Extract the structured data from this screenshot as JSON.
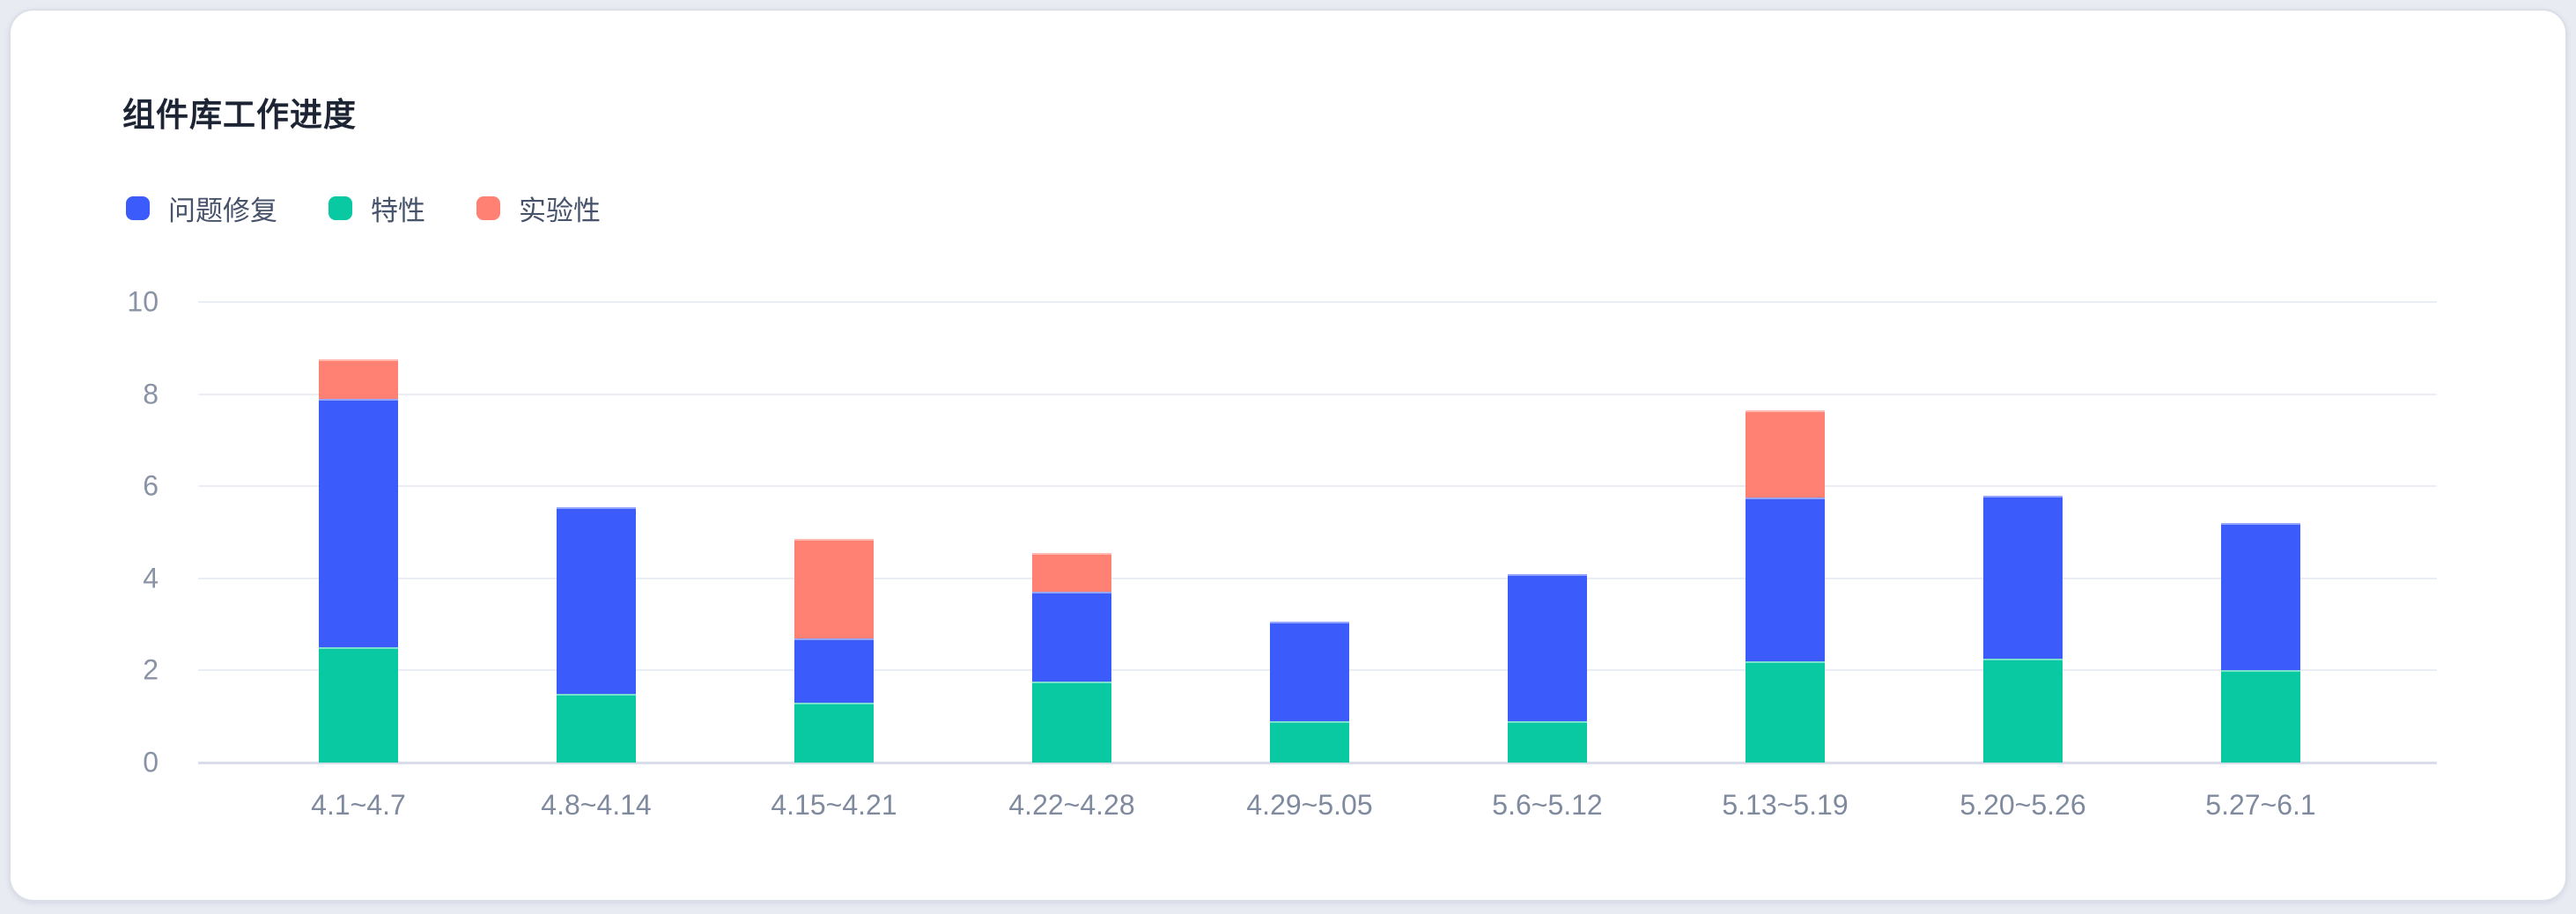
{
  "title": "组件库工作进度",
  "colors": {
    "background": "#e9ebf3",
    "card": "#ffffff",
    "title_text": "#1d2433",
    "legend_text": "#46536b",
    "axis_text": "#8a93a6",
    "gridline": "#ebedf4",
    "axis_line": "#d9dde9"
  },
  "legend": {
    "items": [
      {
        "label": "问题修复",
        "color": "#3b5bfa"
      },
      {
        "label": "特性",
        "color": "#09c9a2"
      },
      {
        "label": "实验性",
        "color": "#ff8173"
      }
    ]
  },
  "chart_data": {
    "type": "bar",
    "stacked": true,
    "title": "组件库工作进度",
    "xlabel": "",
    "ylabel": "",
    "categories": [
      "4.1~4.7",
      "4.8~4.14",
      "4.15~4.21",
      "4.22~4.28",
      "4.29~5.05",
      "5.6~5.12",
      "5.13~5.19",
      "5.20~5.26",
      "5.27~6.1"
    ],
    "series": [
      {
        "name": "问题修复",
        "color": "#3b5bfa",
        "values": [
          5.4,
          4.05,
          1.4,
          1.95,
          2.15,
          3.2,
          3.55,
          3.55,
          3.2
        ]
      },
      {
        "name": "特性",
        "color": "#09c9a2",
        "values": [
          2.5,
          1.5,
          1.3,
          1.75,
          0.9,
          0.9,
          2.2,
          2.25,
          2.0
        ]
      },
      {
        "name": "实验性",
        "color": "#ff8173",
        "values": [
          0.85,
          0.0,
          2.15,
          0.85,
          0.0,
          0.0,
          1.9,
          0.0,
          0.0
        ]
      }
    ],
    "stack_order_bottom_to_top": [
      "特性",
      "问题修复",
      "实验性"
    ],
    "ylim": [
      0,
      10
    ],
    "yticks": [
      0,
      2,
      4,
      6,
      8,
      10
    ],
    "grid": "horizontal",
    "legend_position": "top-left"
  }
}
